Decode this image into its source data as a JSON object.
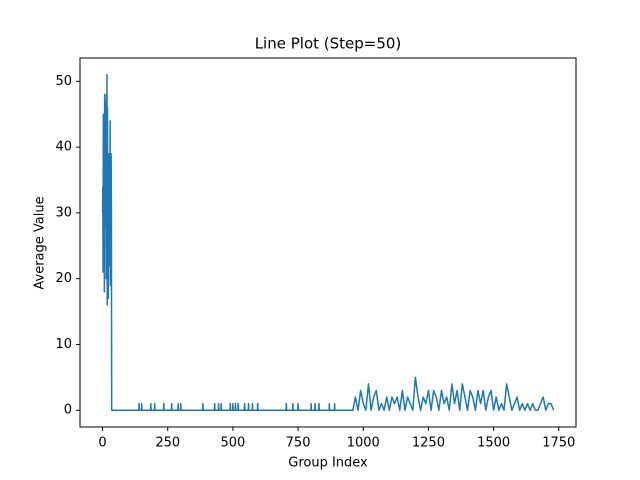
{
  "chart_data": {
    "type": "line",
    "title": "Line Plot (Step=50)",
    "x_label": "Group Index",
    "y_label": "Average Value",
    "color": "#1f77b4",
    "x": [
      0,
      1,
      2,
      3,
      4,
      5,
      6,
      7,
      8,
      9,
      10,
      11,
      12,
      13,
      14,
      15,
      16,
      17,
      18,
      19,
      20,
      21,
      22,
      23,
      24,
      25,
      26,
      27,
      28,
      29,
      30,
      31,
      32,
      33,
      34,
      35,
      139,
      140,
      141,
      149,
      150,
      151,
      184,
      185,
      186,
      199,
      200,
      201,
      234,
      235,
      236,
      264,
      265,
      266,
      289,
      290,
      291,
      299,
      300,
      301,
      384,
      385,
      386,
      429,
      430,
      431,
      444,
      445,
      446,
      454,
      455,
      456,
      489,
      490,
      491,
      499,
      500,
      501,
      509,
      510,
      511,
      519,
      520,
      521,
      544,
      545,
      546,
      559,
      560,
      561,
      574,
      575,
      576,
      594,
      595,
      596,
      704,
      705,
      706,
      729,
      730,
      731,
      749,
      750,
      751,
      799,
      800,
      801,
      814,
      815,
      816,
      829,
      830,
      831,
      869,
      870,
      871,
      889,
      890,
      891,
      960,
      970,
      980,
      990,
      1000,
      1010,
      1020,
      1030,
      1040,
      1050,
      1060,
      1070,
      1080,
      1090,
      1100,
      1110,
      1120,
      1130,
      1140,
      1150,
      1160,
      1170,
      1180,
      1190,
      1200,
      1210,
      1220,
      1230,
      1240,
      1250,
      1260,
      1270,
      1280,
      1290,
      1300,
      1310,
      1320,
      1330,
      1340,
      1350,
      1360,
      1370,
      1380,
      1390,
      1400,
      1410,
      1420,
      1430,
      1440,
      1450,
      1460,
      1470,
      1480,
      1490,
      1500,
      1510,
      1520,
      1530,
      1540,
      1550,
      1560,
      1570,
      1580,
      1590,
      1600,
      1610,
      1620,
      1630,
      1640,
      1650,
      1660,
      1670,
      1680,
      1690,
      1700,
      1710,
      1720,
      1730
    ],
    "values": [
      30,
      34,
      21,
      45,
      30,
      25,
      37,
      18,
      48,
      30,
      35,
      47,
      28,
      44,
      20,
      48,
      30,
      51,
      16,
      46,
      25,
      38,
      17,
      33,
      29,
      39,
      22,
      35,
      30,
      44,
      19,
      37,
      26,
      39,
      30,
      0,
      0,
      1,
      0,
      0,
      1,
      0,
      0,
      1,
      0,
      0,
      1,
      0,
      0,
      1,
      0,
      0,
      1,
      0,
      0,
      1,
      0,
      0,
      1,
      0,
      0,
      1,
      0,
      0,
      1,
      0,
      0,
      1,
      0,
      0,
      1,
      0,
      0,
      1,
      0,
      0,
      1,
      0,
      0,
      1,
      0,
      0,
      1,
      0,
      0,
      1,
      0,
      0,
      1,
      0,
      0,
      1,
      0,
      0,
      1,
      0,
      0,
      1,
      0,
      0,
      1,
      0,
      0,
      1,
      0,
      0,
      1,
      0,
      0,
      1,
      0,
      0,
      1,
      0,
      0,
      1,
      0,
      0,
      1,
      0,
      0,
      2,
      0,
      3,
      1,
      0,
      4,
      0,
      2,
      3,
      0,
      1,
      0,
      2,
      0,
      2,
      1,
      2,
      0,
      3,
      0,
      2,
      1,
      0,
      5,
      2,
      0,
      2,
      1,
      3,
      0,
      3,
      2,
      0,
      3,
      1,
      2,
      0,
      4,
      1,
      3,
      0,
      4,
      2,
      0,
      3,
      2,
      0,
      3,
      1,
      3,
      0,
      2,
      3,
      0,
      2,
      0,
      1,
      0,
      4,
      2,
      0,
      1,
      2,
      0,
      1,
      0,
      1,
      0,
      1,
      0,
      0,
      1,
      2,
      0,
      1,
      1,
      0
    ],
    "xlim": [
      -86.5,
      1816
    ],
    "ylim": [
      -2.55,
      53.55
    ],
    "xticks": [
      0,
      250,
      500,
      750,
      1000,
      1250,
      1500,
      1750
    ],
    "yticks": [
      0,
      10,
      20,
      30,
      40,
      50
    ]
  }
}
